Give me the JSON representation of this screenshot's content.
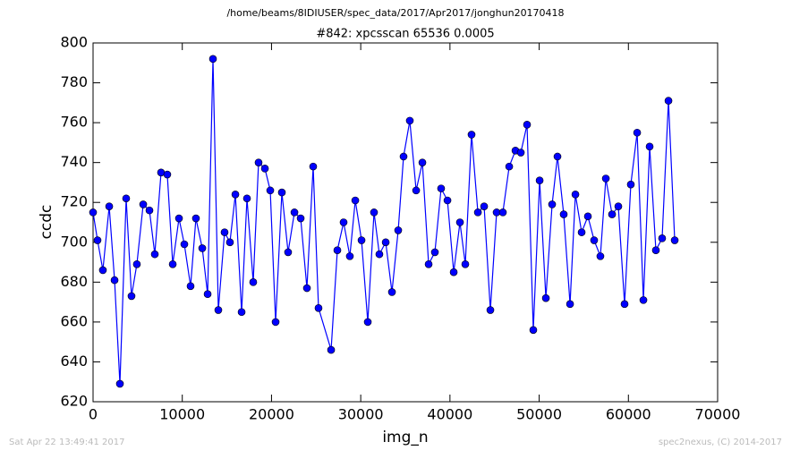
{
  "chart_data": {
    "type": "line",
    "title": "/home/beams/8IDIUSER/spec_data/2017/Apr2017/jonghun20170418",
    "subtitle": "#842: xpcsscan 65536 0.0005",
    "xlabel": "img_n",
    "ylabel": "ccdc",
    "footer_left": "Sat Apr 22 13:49:41 2017",
    "footer_right": "spec2nexus, (C) 2014-2017",
    "color": "#0000ff",
    "marker": "circle",
    "x": [
      0,
      500,
      1100,
      1810,
      2410,
      3010,
      3710,
      4310,
      4910,
      5620,
      6320,
      6920,
      7620,
      8320,
      8930,
      9630,
      10230,
      10930,
      11530,
      12240,
      12840,
      13440,
      14040,
      14740,
      15340,
      15950,
      16650,
      17250,
      17950,
      18550,
      19260,
      19860,
      20460,
      21160,
      21860,
      22570,
      23270,
      23970,
      24670,
      25270,
      26680,
      27380,
      28080,
      28780,
      29390,
      30090,
      30790,
      31490,
      32090,
      32800,
      33500,
      34200,
      34800,
      35500,
      36210,
      36910,
      37610,
      38310,
      39010,
      39720,
      40420,
      41120,
      41720,
      42420,
      43130,
      43830,
      44530,
      45230,
      45930,
      46640,
      47340,
      47940,
      48640,
      49340,
      50050,
      50750,
      51450,
      52050,
      52750,
      53460,
      54060,
      54760,
      55460,
      56160,
      56860,
      57470,
      58170,
      58870,
      59570,
      60270,
      60980,
      61680,
      62380,
      63080,
      63780,
      64490,
      65190
    ],
    "values": [
      715,
      701,
      686,
      718,
      681,
      629,
      722,
      673,
      689,
      719,
      716,
      694,
      735,
      734,
      689,
      712,
      699,
      678,
      712,
      697,
      674,
      792,
      666,
      705,
      700,
      724,
      665,
      722,
      680,
      740,
      737,
      726,
      660,
      725,
      695,
      715,
      712,
      677,
      738,
      667,
      646,
      696,
      710,
      693,
      721,
      701,
      660,
      715,
      694,
      700,
      675,
      706,
      743,
      761,
      726,
      740,
      689,
      695,
      727,
      721,
      685,
      710,
      689,
      754,
      715,
      718,
      666,
      715,
      715,
      738,
      746,
      745,
      759,
      656,
      731,
      672,
      719,
      743,
      714,
      669,
      724,
      705,
      713,
      701,
      693,
      732,
      714,
      718,
      669,
      729,
      755,
      671,
      748,
      696,
      702,
      771,
      701
    ],
    "xlim": [
      0,
      70000
    ],
    "xticks": [
      0,
      10000,
      20000,
      30000,
      40000,
      50000,
      60000,
      70000
    ],
    "ylim": [
      620,
      800
    ],
    "yticks": [
      620,
      640,
      660,
      680,
      700,
      720,
      740,
      760,
      780,
      800
    ]
  }
}
